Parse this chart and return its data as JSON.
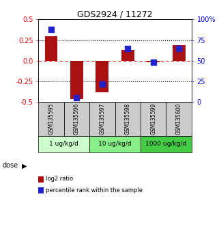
{
  "title": "GDS2924 / 11272",
  "samples": [
    "GSM135595",
    "GSM135596",
    "GSM135597",
    "GSM135598",
    "GSM135599",
    "GSM135600"
  ],
  "log2_ratio": [
    0.3,
    -0.46,
    -0.38,
    0.13,
    -0.02,
    0.19
  ],
  "percentile_rank": [
    88,
    5,
    22,
    65,
    48,
    65
  ],
  "bar_color": "#aa1111",
  "dot_color": "#2222cc",
  "ylim_left": [
    -0.5,
    0.5
  ],
  "ylim_right": [
    0,
    100
  ],
  "yticks_left": [
    -0.5,
    -0.25,
    0.0,
    0.25,
    0.5
  ],
  "yticks_right": [
    0,
    25,
    50,
    75,
    100
  ],
  "ytick_labels_right": [
    "0",
    "25",
    "50",
    "75",
    "100%"
  ],
  "dose_groups": [
    {
      "label": "1 ug/kg/d",
      "samples": [
        0,
        1
      ],
      "color": "#ccffcc"
    },
    {
      "label": "10 ug/kg/d",
      "samples": [
        2,
        3
      ],
      "color": "#88ee88"
    },
    {
      "label": "1000 ug/kg/d",
      "samples": [
        4,
        5
      ],
      "color": "#44cc44"
    }
  ],
  "dose_label": "dose",
  "legend_red": "log2 ratio",
  "legend_blue": "percentile rank within the sample",
  "bg_color": "#ffffff",
  "sample_box_color": "#cccccc",
  "bar_width": 0.5,
  "dot_size": 28
}
